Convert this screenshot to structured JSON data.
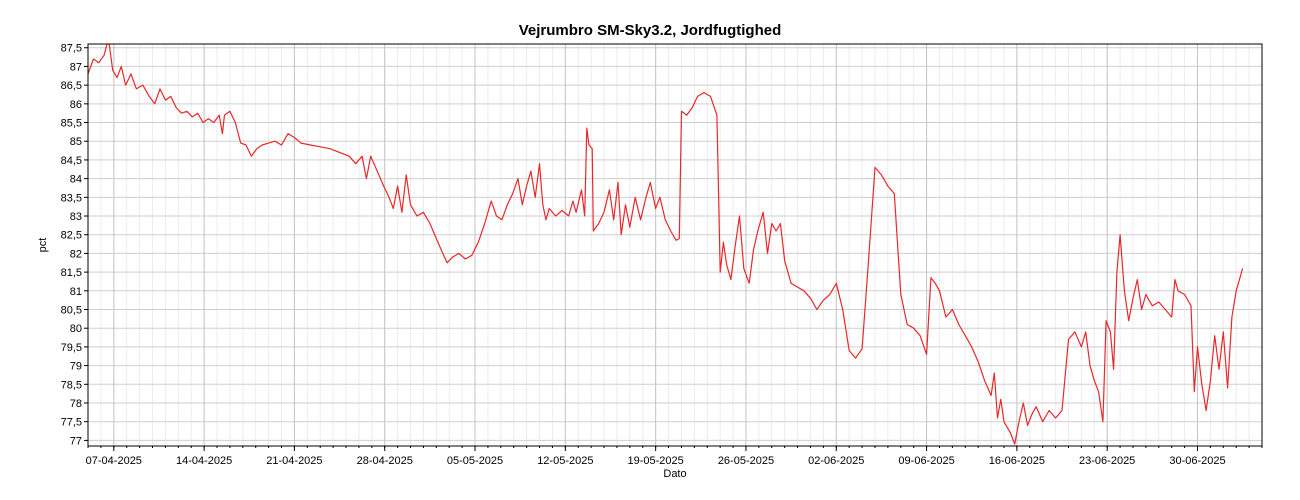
{
  "chart_data": {
    "type": "line",
    "title": "Vejrumbro SM-Sky3.2, Jordfugtighed",
    "xlabel": "Dato",
    "ylabel": "pct",
    "ylim": [
      76.85,
      87.6
    ],
    "xlim": [
      "2025-04-05",
      "2025-07-05"
    ],
    "grid": true,
    "y_ticks": [
      "77",
      "77,5",
      "78",
      "78,5",
      "79",
      "79,5",
      "80",
      "80,5",
      "81",
      "81,5",
      "82",
      "82,5",
      "83",
      "83,5",
      "84",
      "84,5",
      "85",
      "85,5",
      "86",
      "86,5",
      "87",
      "87,5"
    ],
    "x_ticks": [
      {
        "date": "2025-04-07",
        "label": "07-04-2025"
      },
      {
        "date": "2025-04-14",
        "label": "14-04-2025"
      },
      {
        "date": "2025-04-21",
        "label": "21-04-2025"
      },
      {
        "date": "2025-04-28",
        "label": "28-04-2025"
      },
      {
        "date": "2025-05-05",
        "label": "05-05-2025"
      },
      {
        "date": "2025-05-12",
        "label": "12-05-2025"
      },
      {
        "date": "2025-05-19",
        "label": "19-05-2025"
      },
      {
        "date": "2025-05-26",
        "label": "26-05-2025"
      },
      {
        "date": "2025-06-02",
        "label": "02-06-2025"
      },
      {
        "date": "2025-06-09",
        "label": "09-06-2025"
      },
      {
        "date": "2025-06-16",
        "label": "16-06-2025"
      },
      {
        "date": "2025-06-23",
        "label": "23-06-2025"
      },
      {
        "date": "2025-06-30",
        "label": "30-06-2025"
      }
    ],
    "series": [
      {
        "color": "#e8282b",
        "points": [
          [
            "2025-04-05 00:00",
            86.8
          ],
          [
            "2025-04-05 10:00",
            87.2
          ],
          [
            "2025-04-05 20:00",
            87.1
          ],
          [
            "2025-04-06 06:00",
            87.3
          ],
          [
            "2025-04-06 14:00",
            87.75
          ],
          [
            "2025-04-06 22:00",
            86.9
          ],
          [
            "2025-04-07 06:00",
            86.7
          ],
          [
            "2025-04-07 14:00",
            87.0
          ],
          [
            "2025-04-07 22:00",
            86.5
          ],
          [
            "2025-04-08 08:00",
            86.8
          ],
          [
            "2025-04-08 18:00",
            86.4
          ],
          [
            "2025-04-09 06:00",
            86.5
          ],
          [
            "2025-04-09 18:00",
            86.2
          ],
          [
            "2025-04-10 04:00",
            86.0
          ],
          [
            "2025-04-10 14:00",
            86.4
          ],
          [
            "2025-04-11 00:00",
            86.1
          ],
          [
            "2025-04-11 10:00",
            86.2
          ],
          [
            "2025-04-11 20:00",
            85.9
          ],
          [
            "2025-04-12 06:00",
            85.75
          ],
          [
            "2025-04-12 16:00",
            85.8
          ],
          [
            "2025-04-13 02:00",
            85.65
          ],
          [
            "2025-04-13 12:00",
            85.75
          ],
          [
            "2025-04-13 22:00",
            85.5
          ],
          [
            "2025-04-14 08:00",
            85.6
          ],
          [
            "2025-04-14 18:00",
            85.5
          ],
          [
            "2025-04-15 04:00",
            85.7
          ],
          [
            "2025-04-15 10:00",
            85.2
          ],
          [
            "2025-04-15 14:00",
            85.7
          ],
          [
            "2025-04-16 00:00",
            85.8
          ],
          [
            "2025-04-16 10:00",
            85.5
          ],
          [
            "2025-04-16 20:00",
            84.95
          ],
          [
            "2025-04-17 06:00",
            84.9
          ],
          [
            "2025-04-17 16:00",
            84.6
          ],
          [
            "2025-04-18 02:00",
            84.8
          ],
          [
            "2025-04-18 12:00",
            84.9
          ],
          [
            "2025-04-19 00:00",
            84.95
          ],
          [
            "2025-04-19 12:00",
            85.0
          ],
          [
            "2025-04-20 00:00",
            84.9
          ],
          [
            "2025-04-20 12:00",
            85.2
          ],
          [
            "2025-04-21 00:00",
            85.1
          ],
          [
            "2025-04-21 12:00",
            84.95
          ],
          [
            "2025-04-22 06:00",
            84.9
          ],
          [
            "2025-04-23 00:00",
            84.85
          ],
          [
            "2025-04-23 18:00",
            84.8
          ],
          [
            "2025-04-24 12:00",
            84.7
          ],
          [
            "2025-04-25 06:00",
            84.6
          ],
          [
            "2025-04-25 18:00",
            84.4
          ],
          [
            "2025-04-26 06:00",
            84.6
          ],
          [
            "2025-04-26 14:00",
            84.0
          ],
          [
            "2025-04-26 22:00",
            84.6
          ],
          [
            "2025-04-27 10:00",
            84.2
          ],
          [
            "2025-04-27 22:00",
            83.8
          ],
          [
            "2025-04-28 08:00",
            83.5
          ],
          [
            "2025-04-28 16:00",
            83.2
          ],
          [
            "2025-04-29 00:00",
            83.8
          ],
          [
            "2025-04-29 08:00",
            83.1
          ],
          [
            "2025-04-29 16:00",
            84.1
          ],
          [
            "2025-04-30 00:00",
            83.3
          ],
          [
            "2025-04-30 12:00",
            83.0
          ],
          [
            "2025-05-01 00:00",
            83.1
          ],
          [
            "2025-05-01 12:00",
            82.8
          ],
          [
            "2025-05-02 00:00",
            82.4
          ],
          [
            "2025-05-02 12:00",
            82.0
          ],
          [
            "2025-05-02 20:00",
            81.75
          ],
          [
            "2025-05-03 06:00",
            81.9
          ],
          [
            "2025-05-03 18:00",
            82.0
          ],
          [
            "2025-05-04 06:00",
            81.85
          ],
          [
            "2025-05-04 18:00",
            81.95
          ],
          [
            "2025-05-05 06:00",
            82.3
          ],
          [
            "2025-05-05 18:00",
            82.8
          ],
          [
            "2025-05-06 06:00",
            83.4
          ],
          [
            "2025-05-06 16:00",
            83.0
          ],
          [
            "2025-05-07 02:00",
            82.9
          ],
          [
            "2025-05-07 12:00",
            83.3
          ],
          [
            "2025-05-07 22:00",
            83.6
          ],
          [
            "2025-05-08 08:00",
            84.0
          ],
          [
            "2025-05-08 16:00",
            83.3
          ],
          [
            "2025-05-09 00:00",
            83.8
          ],
          [
            "2025-05-09 08:00",
            84.2
          ],
          [
            "2025-05-09 16:00",
            83.5
          ],
          [
            "2025-05-10 00:00",
            84.4
          ],
          [
            "2025-05-10 06:00",
            83.3
          ],
          [
            "2025-05-10 12:00",
            82.9
          ],
          [
            "2025-05-10 18:00",
            83.2
          ],
          [
            "2025-05-11 06:00",
            83.0
          ],
          [
            "2025-05-11 18:00",
            83.15
          ],
          [
            "2025-05-12 06:00",
            83.0
          ],
          [
            "2025-05-12 14:00",
            83.4
          ],
          [
            "2025-05-12 20:00",
            83.1
          ],
          [
            "2025-05-13 06:00",
            83.7
          ],
          [
            "2025-05-13 12:00",
            83.0
          ],
          [
            "2025-05-13 16:00",
            85.35
          ],
          [
            "2025-05-13 20:00",
            84.9
          ],
          [
            "2025-05-14 02:00",
            84.8
          ],
          [
            "2025-05-14 04:00",
            82.6
          ],
          [
            "2025-05-14 14:00",
            82.8
          ],
          [
            "2025-05-15 00:00",
            83.1
          ],
          [
            "2025-05-15 10:00",
            83.7
          ],
          [
            "2025-05-15 18:00",
            82.9
          ],
          [
            "2025-05-16 02:00",
            83.9
          ],
          [
            "2025-05-16 08:00",
            82.5
          ],
          [
            "2025-05-16 16:00",
            83.3
          ],
          [
            "2025-05-17 00:00",
            82.7
          ],
          [
            "2025-05-17 10:00",
            83.5
          ],
          [
            "2025-05-17 20:00",
            82.9
          ],
          [
            "2025-05-18 06:00",
            83.5
          ],
          [
            "2025-05-18 14:00",
            83.9
          ],
          [
            "2025-05-19 00:00",
            83.2
          ],
          [
            "2025-05-19 08:00",
            83.5
          ],
          [
            "2025-05-19 18:00",
            82.9
          ],
          [
            "2025-05-20 04:00",
            82.6
          ],
          [
            "2025-05-20 14:00",
            82.35
          ],
          [
            "2025-05-20 20:00",
            82.4
          ],
          [
            "2025-05-21 00:00",
            85.8
          ],
          [
            "2025-05-21 10:00",
            85.7
          ],
          [
            "2025-05-21 20:00",
            85.9
          ],
          [
            "2025-05-22 06:00",
            86.2
          ],
          [
            "2025-05-22 18:00",
            86.3
          ],
          [
            "2025-05-23 06:00",
            86.2
          ],
          [
            "2025-05-23 18:00",
            85.7
          ],
          [
            "2025-05-24 00:00",
            81.5
          ],
          [
            "2025-05-24 06:00",
            82.3
          ],
          [
            "2025-05-24 12:00",
            81.7
          ],
          [
            "2025-05-24 20:00",
            81.3
          ],
          [
            "2025-05-25 04:00",
            82.2
          ],
          [
            "2025-05-25 12:00",
            83.0
          ],
          [
            "2025-05-25 20:00",
            81.6
          ],
          [
            "2025-05-26 06:00",
            81.2
          ],
          [
            "2025-05-26 14:00",
            82.1
          ],
          [
            "2025-05-26 22:00",
            82.6
          ],
          [
            "2025-05-27 08:00",
            83.1
          ],
          [
            "2025-05-27 16:00",
            82.0
          ],
          [
            "2025-05-28 00:00",
            82.8
          ],
          [
            "2025-05-28 08:00",
            82.6
          ],
          [
            "2025-05-28 16:00",
            82.8
          ],
          [
            "2025-05-29 00:00",
            81.8
          ],
          [
            "2025-05-29 12:00",
            81.2
          ],
          [
            "2025-05-30 00:00",
            81.1
          ],
          [
            "2025-05-30 12:00",
            81.0
          ],
          [
            "2025-05-31 00:00",
            80.8
          ],
          [
            "2025-05-31 12:00",
            80.5
          ],
          [
            "2025-06-01 00:00",
            80.75
          ],
          [
            "2025-06-01 12:00",
            80.9
          ],
          [
            "2025-06-02 00:00",
            81.2
          ],
          [
            "2025-06-02 12:00",
            80.5
          ],
          [
            "2025-06-03 00:00",
            79.4
          ],
          [
            "2025-06-03 12:00",
            79.2
          ],
          [
            "2025-06-04 00:00",
            79.45
          ],
          [
            "2025-06-04 12:00",
            81.8
          ],
          [
            "2025-06-05 00:00",
            84.3
          ],
          [
            "2025-06-05 12:00",
            84.1
          ],
          [
            "2025-06-06 00:00",
            83.8
          ],
          [
            "2025-06-06 12:00",
            83.6
          ],
          [
            "2025-06-07 00:00",
            80.9
          ],
          [
            "2025-06-07 12:00",
            80.1
          ],
          [
            "2025-06-08 00:00",
            80.0
          ],
          [
            "2025-06-08 12:00",
            79.8
          ],
          [
            "2025-06-09 00:00",
            79.3
          ],
          [
            "2025-06-09 08:00",
            81.35
          ],
          [
            "2025-06-09 16:00",
            81.2
          ],
          [
            "2025-06-10 00:00",
            81.0
          ],
          [
            "2025-06-10 12:00",
            80.3
          ],
          [
            "2025-06-11 00:00",
            80.5
          ],
          [
            "2025-06-11 12:00",
            80.1
          ],
          [
            "2025-06-12 00:00",
            79.8
          ],
          [
            "2025-06-12 12:00",
            79.5
          ],
          [
            "2025-06-13 00:00",
            79.1
          ],
          [
            "2025-06-13 12:00",
            78.6
          ],
          [
            "2025-06-14 00:00",
            78.2
          ],
          [
            "2025-06-14 06:00",
            78.8
          ],
          [
            "2025-06-14 12:00",
            77.6
          ],
          [
            "2025-06-14 18:00",
            78.1
          ],
          [
            "2025-06-15 00:00",
            77.5
          ],
          [
            "2025-06-15 12:00",
            77.2
          ],
          [
            "2025-06-15 20:00",
            76.9
          ],
          [
            "2025-06-16 04:00",
            77.5
          ],
          [
            "2025-06-16 12:00",
            78.0
          ],
          [
            "2025-06-16 20:00",
            77.4
          ],
          [
            "2025-06-17 04:00",
            77.7
          ],
          [
            "2025-06-17 12:00",
            77.9
          ],
          [
            "2025-06-18 00:00",
            77.5
          ],
          [
            "2025-06-18 12:00",
            77.8
          ],
          [
            "2025-06-19 00:00",
            77.6
          ],
          [
            "2025-06-19 12:00",
            77.8
          ],
          [
            "2025-06-20 00:00",
            79.7
          ],
          [
            "2025-06-20 12:00",
            79.9
          ],
          [
            "2025-06-21 00:00",
            79.5
          ],
          [
            "2025-06-21 08:00",
            79.9
          ],
          [
            "2025-06-21 16:00",
            79.0
          ],
          [
            "2025-06-22 00:00",
            78.6
          ],
          [
            "2025-06-22 08:00",
            78.3
          ],
          [
            "2025-06-22 16:00",
            77.5
          ],
          [
            "2025-06-22 22:00",
            80.2
          ],
          [
            "2025-06-23 06:00",
            79.9
          ],
          [
            "2025-06-23 12:00",
            78.9
          ],
          [
            "2025-06-23 18:00",
            81.5
          ],
          [
            "2025-06-24 00:00",
            82.5
          ],
          [
            "2025-06-24 08:00",
            81.0
          ],
          [
            "2025-06-24 16:00",
            80.2
          ],
          [
            "2025-06-25 00:00",
            80.8
          ],
          [
            "2025-06-25 08:00",
            81.3
          ],
          [
            "2025-06-25 16:00",
            80.5
          ],
          [
            "2025-06-26 00:00",
            80.9
          ],
          [
            "2025-06-26 12:00",
            80.6
          ],
          [
            "2025-06-27 00:00",
            80.7
          ],
          [
            "2025-06-27 12:00",
            80.5
          ],
          [
            "2025-06-28 00:00",
            80.3
          ],
          [
            "2025-06-28 06:00",
            81.3
          ],
          [
            "2025-06-28 12:00",
            81.0
          ],
          [
            "2025-06-29 00:00",
            80.9
          ],
          [
            "2025-06-29 12:00",
            80.6
          ],
          [
            "2025-06-29 18:00",
            78.3
          ],
          [
            "2025-06-30 00:00",
            79.5
          ],
          [
            "2025-06-30 08:00",
            78.5
          ],
          [
            "2025-06-30 16:00",
            77.8
          ],
          [
            "2025-07-01 00:00",
            78.6
          ],
          [
            "2025-07-01 08:00",
            79.8
          ],
          [
            "2025-07-01 16:00",
            78.9
          ],
          [
            "2025-07-02 00:00",
            79.9
          ],
          [
            "2025-07-02 08:00",
            78.4
          ],
          [
            "2025-07-02 16:00",
            80.3
          ],
          [
            "2025-07-03 00:00",
            81.0
          ],
          [
            "2025-07-03 08:00",
            81.4
          ],
          [
            "2025-07-03 12:00",
            81.6
          ]
        ]
      }
    ]
  }
}
